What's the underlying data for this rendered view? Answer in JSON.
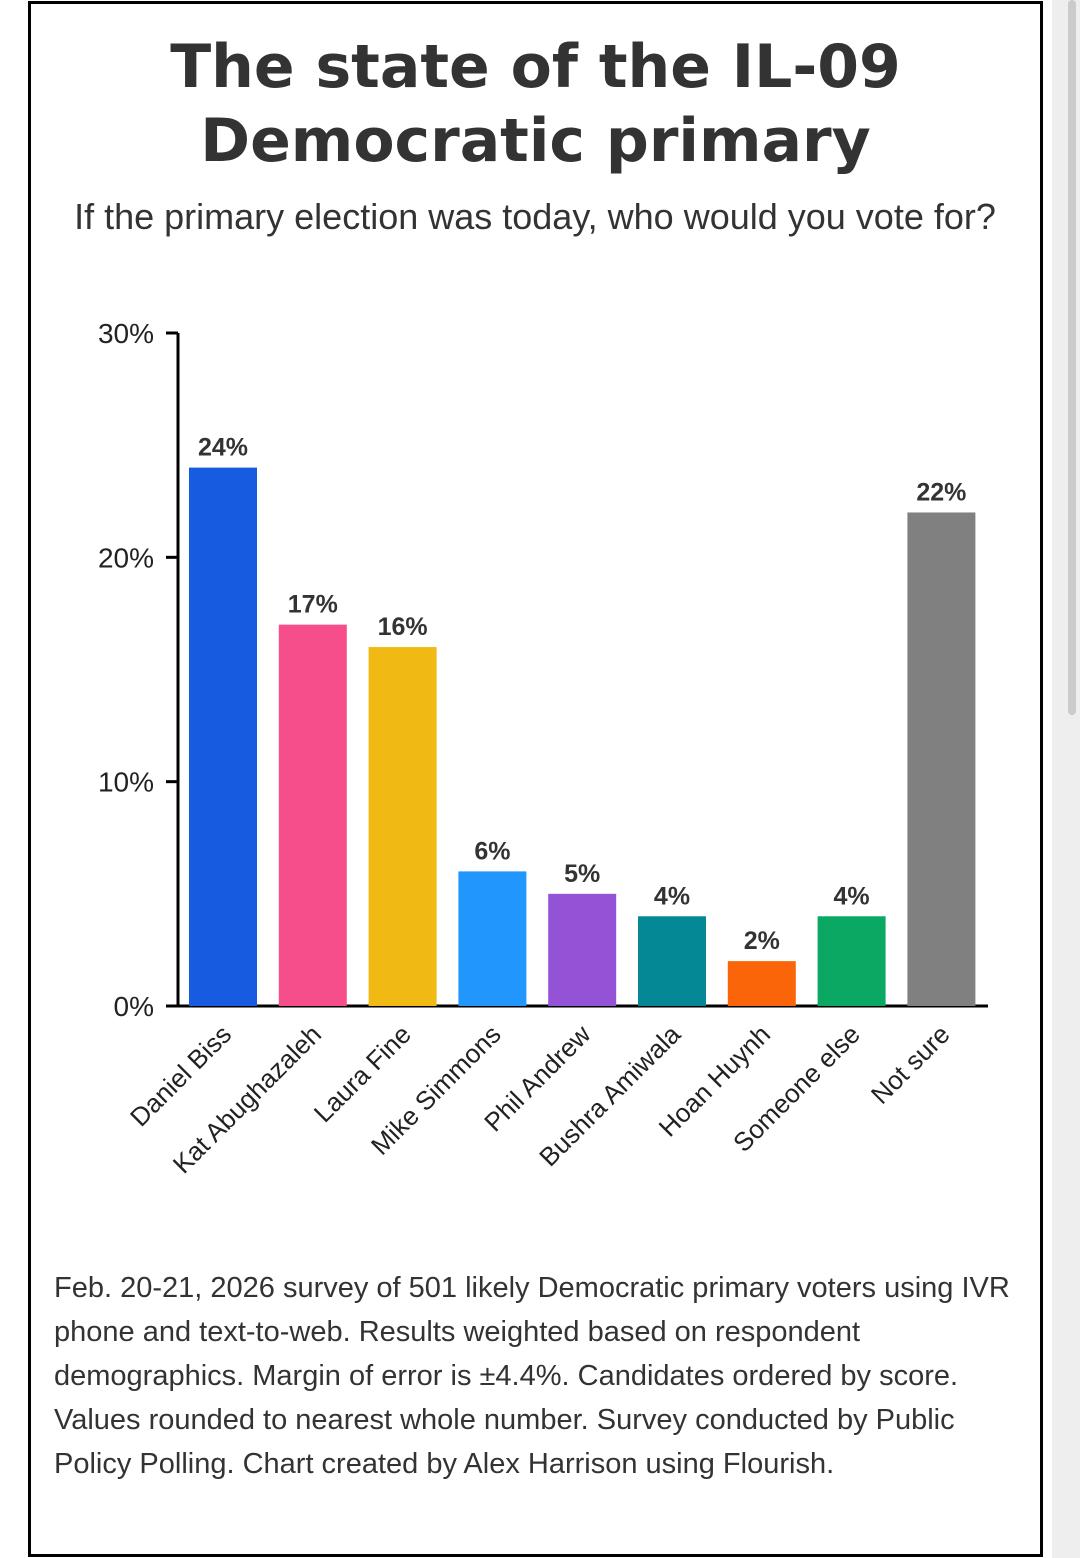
{
  "title": "The state of the IL-09 Democratic primary",
  "subtitle": "If the primary election was today, who would you vote for?",
  "footer": "Feb. 20-21, 2026 survey of 501 likely Democratic primary voters using IVR phone and text-to-web. Results weighted based on respondent demographics. Margin of error is ±4.4%. Candidates ordered by score. Values rounded to nearest whole number. Survey conducted by Public Policy Polling. Chart created by Alex Harrison using Flourish.",
  "chart_data": {
    "type": "bar",
    "title": "The state of the IL-09 Democratic primary",
    "xlabel": "",
    "ylabel": "",
    "ylim": [
      0,
      30
    ],
    "yticks": [
      0,
      10,
      20,
      30
    ],
    "ytick_labels": [
      "0%",
      "10%",
      "20%",
      "30%"
    ],
    "categories": [
      [
        "Daniel Biss"
      ],
      [
        "Kat",
        "Abughazaleh"
      ],
      [
        "Laura Fine"
      ],
      [
        "Mike Simmons"
      ],
      [
        "Phil Andrew"
      ],
      [
        "Bushra",
        "Amiwala"
      ],
      [
        "Hoan Huynh"
      ],
      [
        "Someone else"
      ],
      [
        "Not sure"
      ]
    ],
    "values": [
      24,
      17,
      16,
      6,
      5,
      4,
      2,
      4,
      22
    ],
    "data_labels": [
      "24%",
      "17%",
      "16%",
      "6%",
      "5%",
      "4%",
      "2%",
      "4%",
      "22%"
    ],
    "colors": [
      "#175ce0",
      "#f54e8a",
      "#f0b913",
      "#2196fc",
      "#9452d6",
      "#058896",
      "#f96508",
      "#0aa862",
      "#808080"
    ],
    "grid": false,
    "legend": "none"
  }
}
